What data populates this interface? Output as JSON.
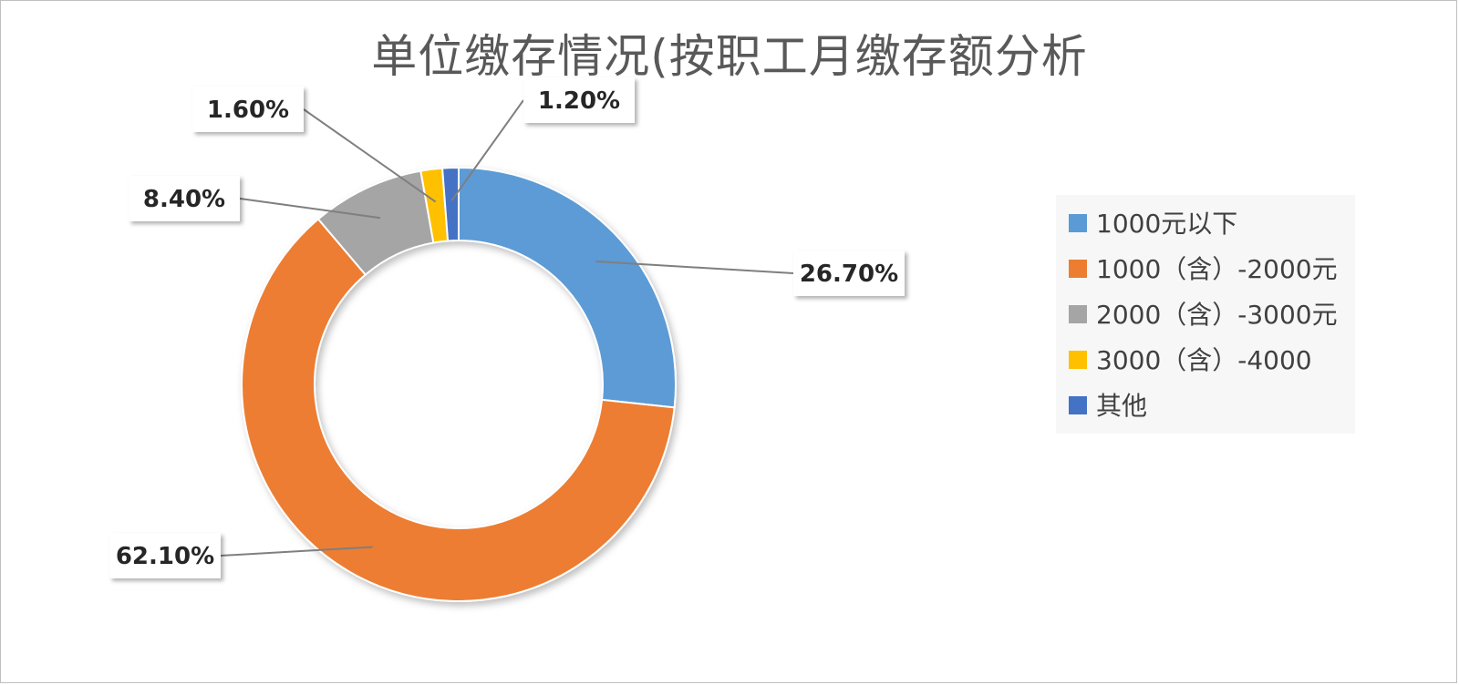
{
  "chart_data": {
    "type": "pie",
    "variant": "donut",
    "title": "单位缴存情况(按职工月缴存额分析",
    "categories": [
      "1000元以下",
      "1000（含）-2000元",
      "2000（含）-3000元",
      "3000（含）-4000",
      "其他"
    ],
    "values": [
      26.7,
      62.1,
      8.4,
      1.6,
      1.2
    ],
    "value_labels": [
      "26.70%",
      "62.10%",
      "8.40%",
      "1.60%",
      "1.20%"
    ],
    "colors": [
      "#5b9bd5",
      "#ed7d31",
      "#a5a5a5",
      "#ffc000",
      "#4472c4"
    ],
    "legend_position": "right"
  }
}
